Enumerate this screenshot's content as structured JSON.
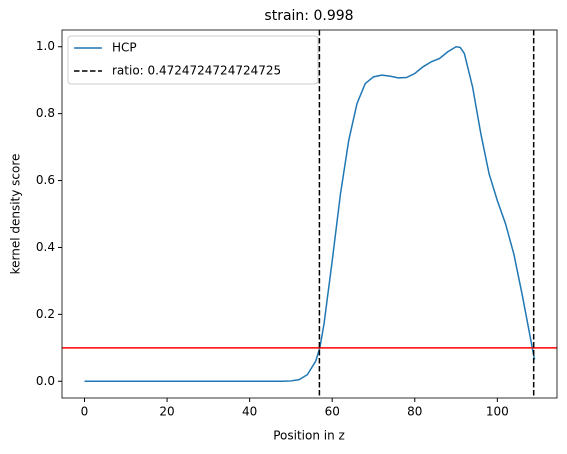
{
  "chart_data": {
    "type": "line",
    "title": "strain: 0.998",
    "xlabel": "Position in z",
    "ylabel": "kernel density score",
    "series": [
      {
        "name": "HCP",
        "color": "#1f77b4",
        "x": [
          0,
          10,
          20,
          30,
          40,
          48,
          50,
          52,
          54,
          56,
          57,
          58,
          60,
          62,
          64,
          66,
          68,
          70,
          72,
          74,
          76,
          78,
          80,
          82,
          84,
          86,
          88,
          90,
          91,
          92,
          94,
          96,
          98,
          100,
          102,
          104,
          106,
          108,
          109
        ],
        "values": [
          0,
          0,
          0,
          0,
          0,
          0,
          0.001,
          0.005,
          0.02,
          0.06,
          0.1,
          0.17,
          0.36,
          0.56,
          0.72,
          0.83,
          0.89,
          0.91,
          0.915,
          0.912,
          0.907,
          0.908,
          0.92,
          0.94,
          0.955,
          0.965,
          0.985,
          1.0,
          0.998,
          0.98,
          0.88,
          0.74,
          0.62,
          0.54,
          0.47,
          0.38,
          0.26,
          0.13,
          0.065
        ]
      }
    ],
    "vlines": {
      "name": "ratio: 0.4724724724724725",
      "color": "#000000",
      "x": [
        56.9,
        108.8
      ]
    },
    "hline": {
      "y": 0.1,
      "color": "#ff0000"
    },
    "xlim": [
      -5.45,
      114.45
    ],
    "ylim": [
      -0.05,
      1.05
    ],
    "xticks": [
      0,
      20,
      40,
      60,
      80,
      100
    ],
    "yticks": [
      {
        "value": 0,
        "label": "0.0"
      },
      {
        "value": 0.2,
        "label": "0.2"
      },
      {
        "value": 0.4,
        "label": "0.4"
      },
      {
        "value": 0.6,
        "label": "0.6"
      },
      {
        "value": 0.8,
        "label": "0.8"
      },
      {
        "value": 1.0,
        "label": "1.0"
      }
    ],
    "legend": "upper-left"
  }
}
